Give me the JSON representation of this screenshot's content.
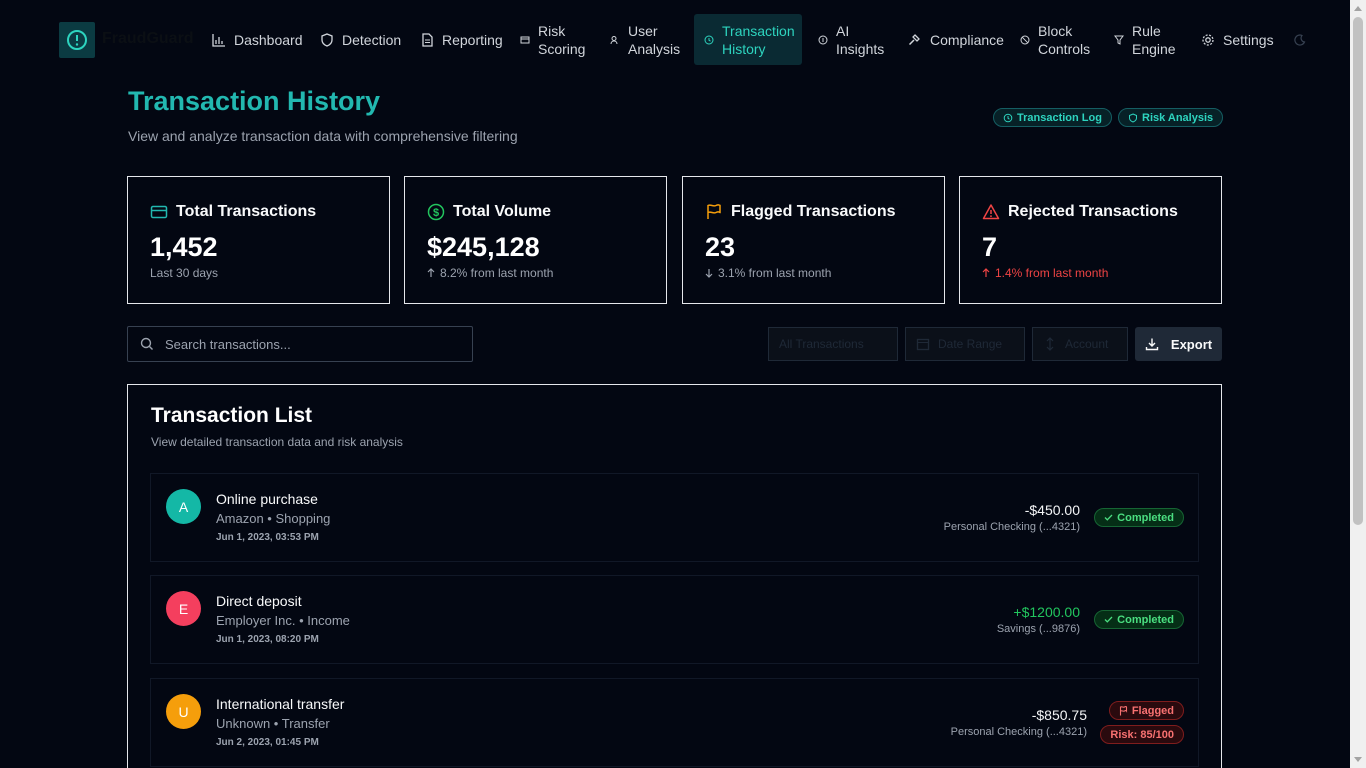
{
  "brand": {
    "name": "FraudGuard"
  },
  "nav": {
    "items": [
      {
        "label": "Dashboard",
        "icon": "bar-chart-icon"
      },
      {
        "label": "Detection",
        "icon": "shield-icon"
      },
      {
        "label": "Reporting",
        "icon": "file-text-icon"
      },
      {
        "label": "Risk\nScoring",
        "icon": "card-icon"
      },
      {
        "label": "User\nAnalysis",
        "icon": "users-icon"
      },
      {
        "label": "Transaction\nHistory",
        "icon": "history-icon",
        "active": true
      },
      {
        "label": "AI\nInsights",
        "icon": "info-circle-icon"
      },
      {
        "label": "Compliance",
        "icon": "gavel-icon"
      },
      {
        "label": "Block\nControls",
        "icon": "ban-icon"
      },
      {
        "label": "Rule\nEngine",
        "icon": "filter-icon"
      },
      {
        "label": "Settings",
        "icon": "gear-icon"
      }
    ]
  },
  "header": {
    "title": "Transaction History",
    "subtitle": "View and analyze transaction data with comprehensive filtering",
    "pills": [
      "Transaction Log",
      "Risk Analysis"
    ]
  },
  "stats": [
    {
      "title": "Total Transactions",
      "value": "1,452",
      "note": "Last 30 days",
      "icon": "credit-card-icon",
      "color": "#22b8b0"
    },
    {
      "title": "Total Volume",
      "value": "$245,128",
      "note": "8.2% from last month",
      "trend": "up",
      "icon": "dollar-circle-icon",
      "color": "#22c55e"
    },
    {
      "title": "Flagged Transactions",
      "value": "23",
      "note": "3.1% from last month",
      "trend": "down",
      "icon": "flag-icon",
      "color": "#f59e0b"
    },
    {
      "title": "Rejected Transactions",
      "value": "7",
      "note": "1.4% from last month",
      "trend": "up",
      "icon": "warning-triangle-icon",
      "color": "#ef4444"
    }
  ],
  "toolbar": {
    "search_placeholder": "Search transactions...",
    "filter_type": "All Transactions",
    "date_range": "Date Range",
    "account": "Account",
    "export_label": "Export"
  },
  "list": {
    "title": "Transaction List",
    "subtitle": "View detailed transaction data and risk analysis",
    "rows": [
      {
        "avatar": "A",
        "avatar_color": "#14b8a6",
        "title": "Online purchase",
        "meta": "Amazon • Shopping",
        "date": "Jun 1, 2023, 03:53 PM",
        "amount": "-$450.00",
        "account": "Personal Checking (...4321)",
        "status": "Completed"
      },
      {
        "avatar": "E",
        "avatar_color": "#f43f5e",
        "title": "Direct deposit",
        "meta": "Employer Inc. • Income",
        "date": "Jun 1, 2023, 08:20 PM",
        "amount": "+$1200.00",
        "account": "Savings (...9876)",
        "status": "Completed"
      },
      {
        "avatar": "U",
        "avatar_color": "#f59e0b",
        "title": "International transfer",
        "meta": "Unknown • Transfer",
        "date": "Jun 2, 2023, 01:45 PM",
        "amount": "-$850.75",
        "account": "Personal Checking (...4321)",
        "status": "Flagged",
        "risk": "Risk: 85/100"
      }
    ]
  }
}
